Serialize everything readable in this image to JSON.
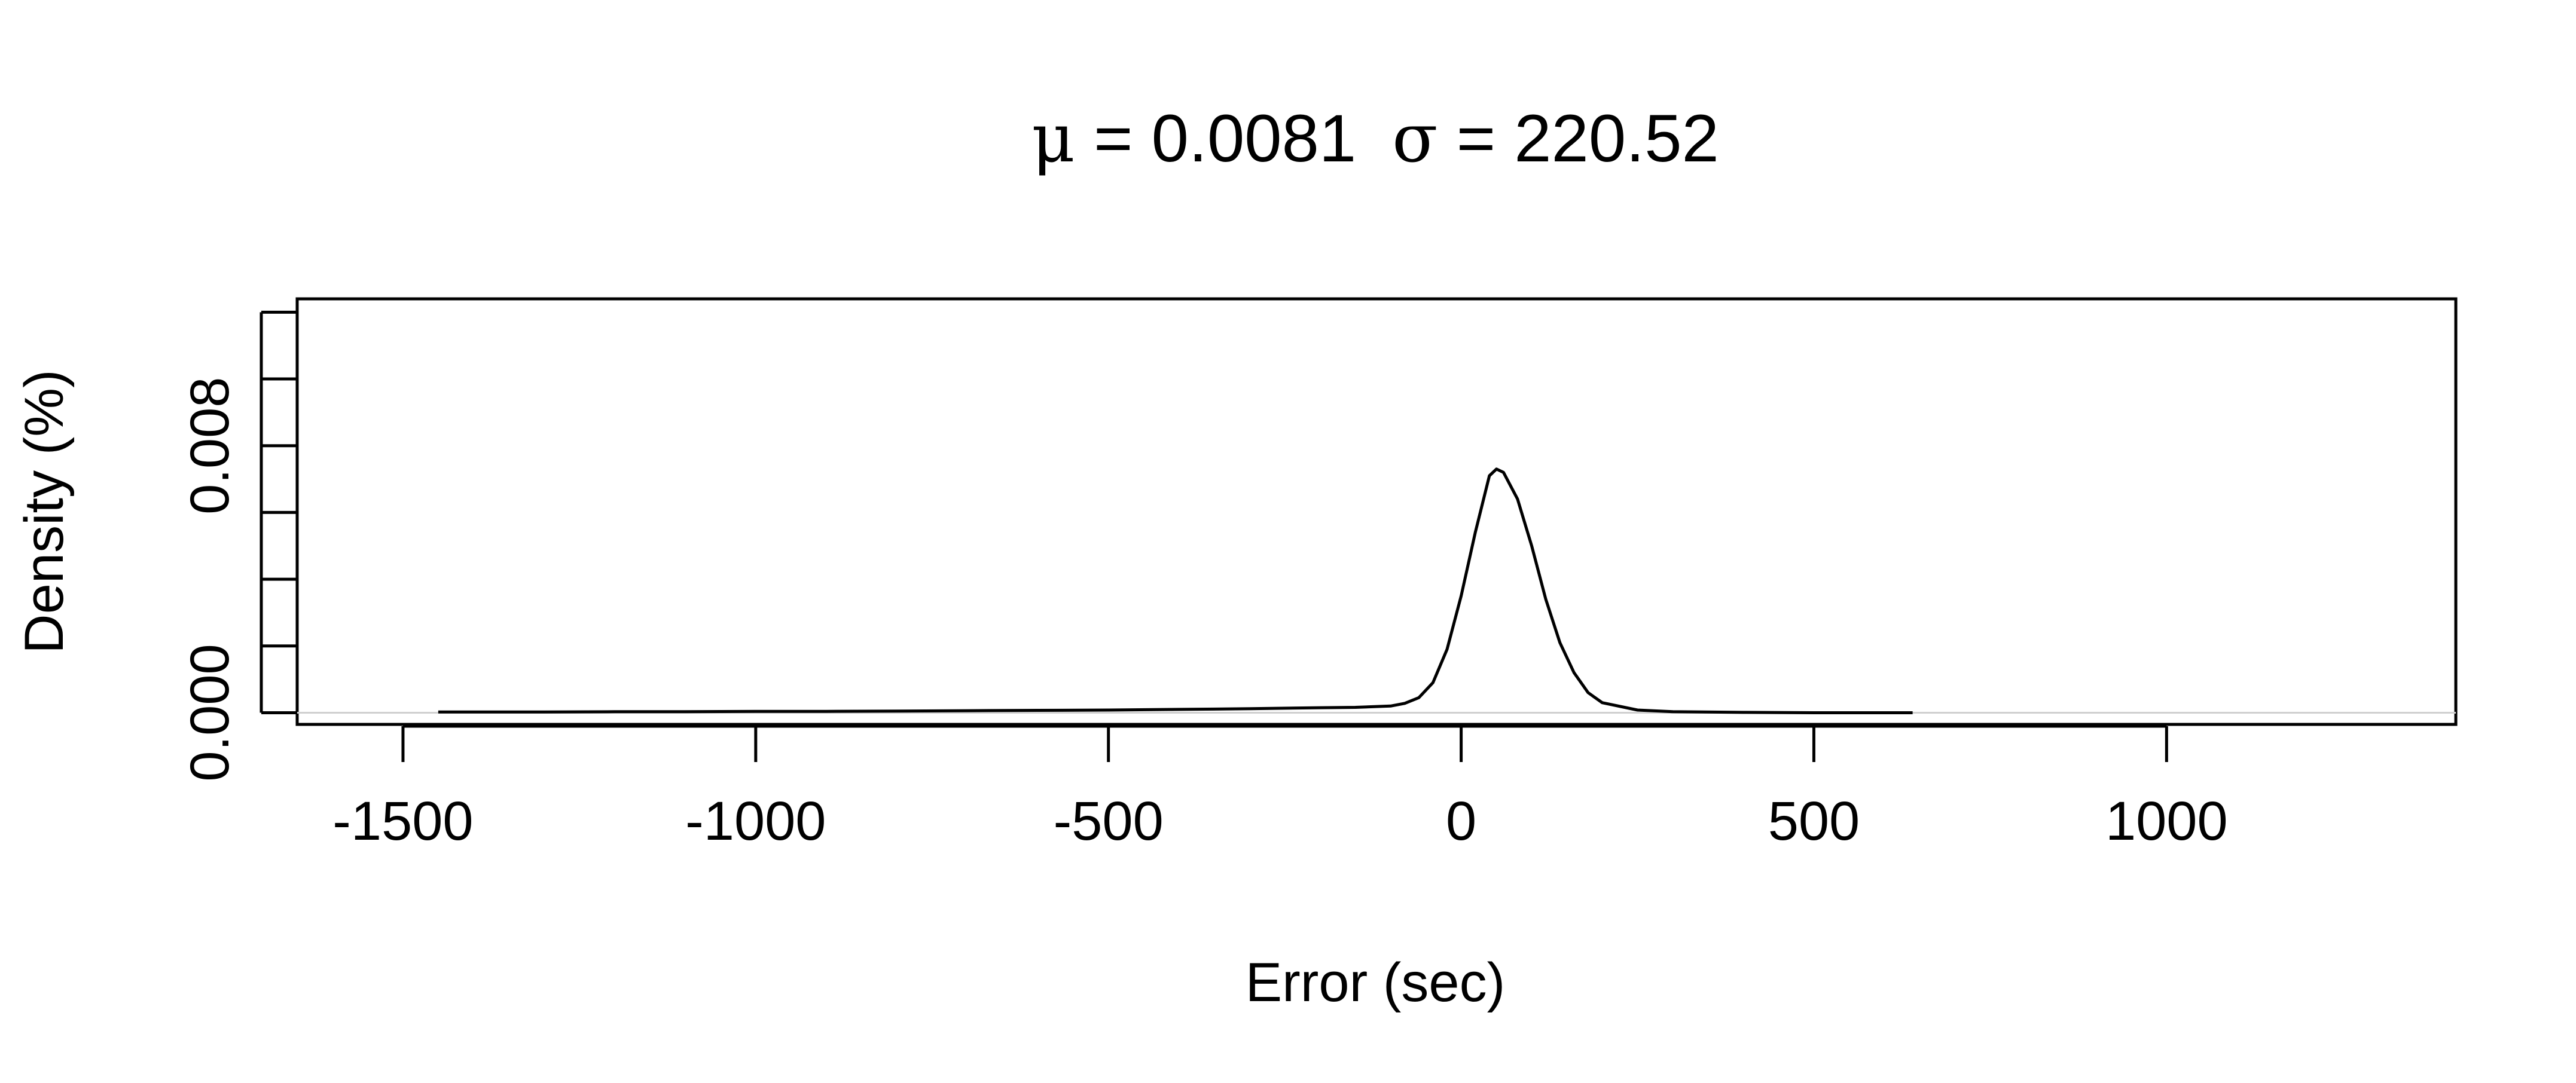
{
  "chart_data": {
    "type": "line",
    "title": {
      "mu_symbol": "μ",
      "mu_text": " = 0.0081",
      "sigma_symbol": "σ",
      "sigma_text": " = 220.52"
    },
    "xlabel": "Error (sec)",
    "ylabel": "Density (%)",
    "xlim": [
      -1650,
      1410
    ],
    "ylim": [
      -0.00035,
      0.0124
    ],
    "x_ticks": [
      -1500,
      -1000,
      -500,
      0,
      500,
      1000
    ],
    "x_tick_labels": [
      "-1500",
      "-1000",
      "-500",
      "0",
      "500",
      "1000"
    ],
    "y_ticks": [
      0.0,
      0.002,
      0.004,
      0.006,
      0.008,
      0.01,
      0.012
    ],
    "y_tick_labels": [
      "0.000",
      "",
      "",
      "",
      "0.008",
      "",
      ""
    ],
    "grid": false,
    "zero_line": true,
    "series": [
      {
        "name": "density",
        "x": [
          -1450,
          -1300,
          -1200,
          -1100,
          -1000,
          -900,
          -800,
          -700,
          -600,
          -500,
          -400,
          -300,
          -200,
          -150,
          -100,
          -80,
          -60,
          -40,
          -20,
          0,
          20,
          40,
          50,
          60,
          80,
          100,
          120,
          140,
          160,
          180,
          200,
          250,
          300,
          400,
          500,
          640
        ],
        "y": [
          2e-05,
          2e-05,
          3e-05,
          3e-05,
          4e-05,
          4e-05,
          5e-05,
          6e-05,
          7e-05,
          8e-05,
          0.0001,
          0.00012,
          0.00015,
          0.00016,
          0.0002,
          0.00028,
          0.00045,
          0.0009,
          0.0019,
          0.0035,
          0.0054,
          0.0071,
          0.0073,
          0.0072,
          0.0064,
          0.005,
          0.0034,
          0.0021,
          0.0012,
          0.0006,
          0.0003,
          8e-05,
          3e-05,
          1e-05,
          0.0,
          0.0
        ]
      }
    ]
  }
}
